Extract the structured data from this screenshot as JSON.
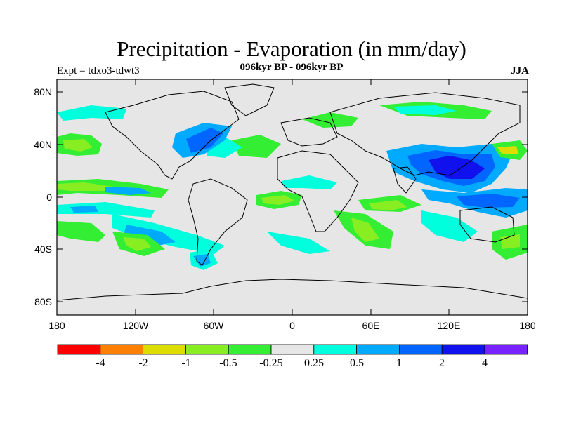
{
  "title": "Precipitation - Evaporation (in mm/day)",
  "subtitle": "096kyr BP - 096kyr BP",
  "left_label": "Expt = tdxo3-tdwt3",
  "right_label": "JJA",
  "lat_ticks": [
    "80N",
    "40N",
    "0",
    "40S",
    "80S"
  ],
  "lon_ticks": [
    "180",
    "120W",
    "60W",
    "0",
    "60E",
    "120E",
    "180"
  ],
  "colorbar": {
    "colors": [
      "#ff0000",
      "#ff7f00",
      "#dddd00",
      "#88ee22",
      "#33ee33",
      "#e6e6e6",
      "#00ffdd",
      "#00aaff",
      "#0066ff",
      "#1111ee",
      "#7722ff",
      "#7722ff"
    ],
    "labels": [
      "-4",
      "-2",
      "-1",
      "-0.5",
      "-0.25",
      "0.25",
      "0.5",
      "1",
      "2",
      "4"
    ]
  },
  "colors": {
    "background": "#e6e6e6",
    "land_outline": "#000000"
  }
}
